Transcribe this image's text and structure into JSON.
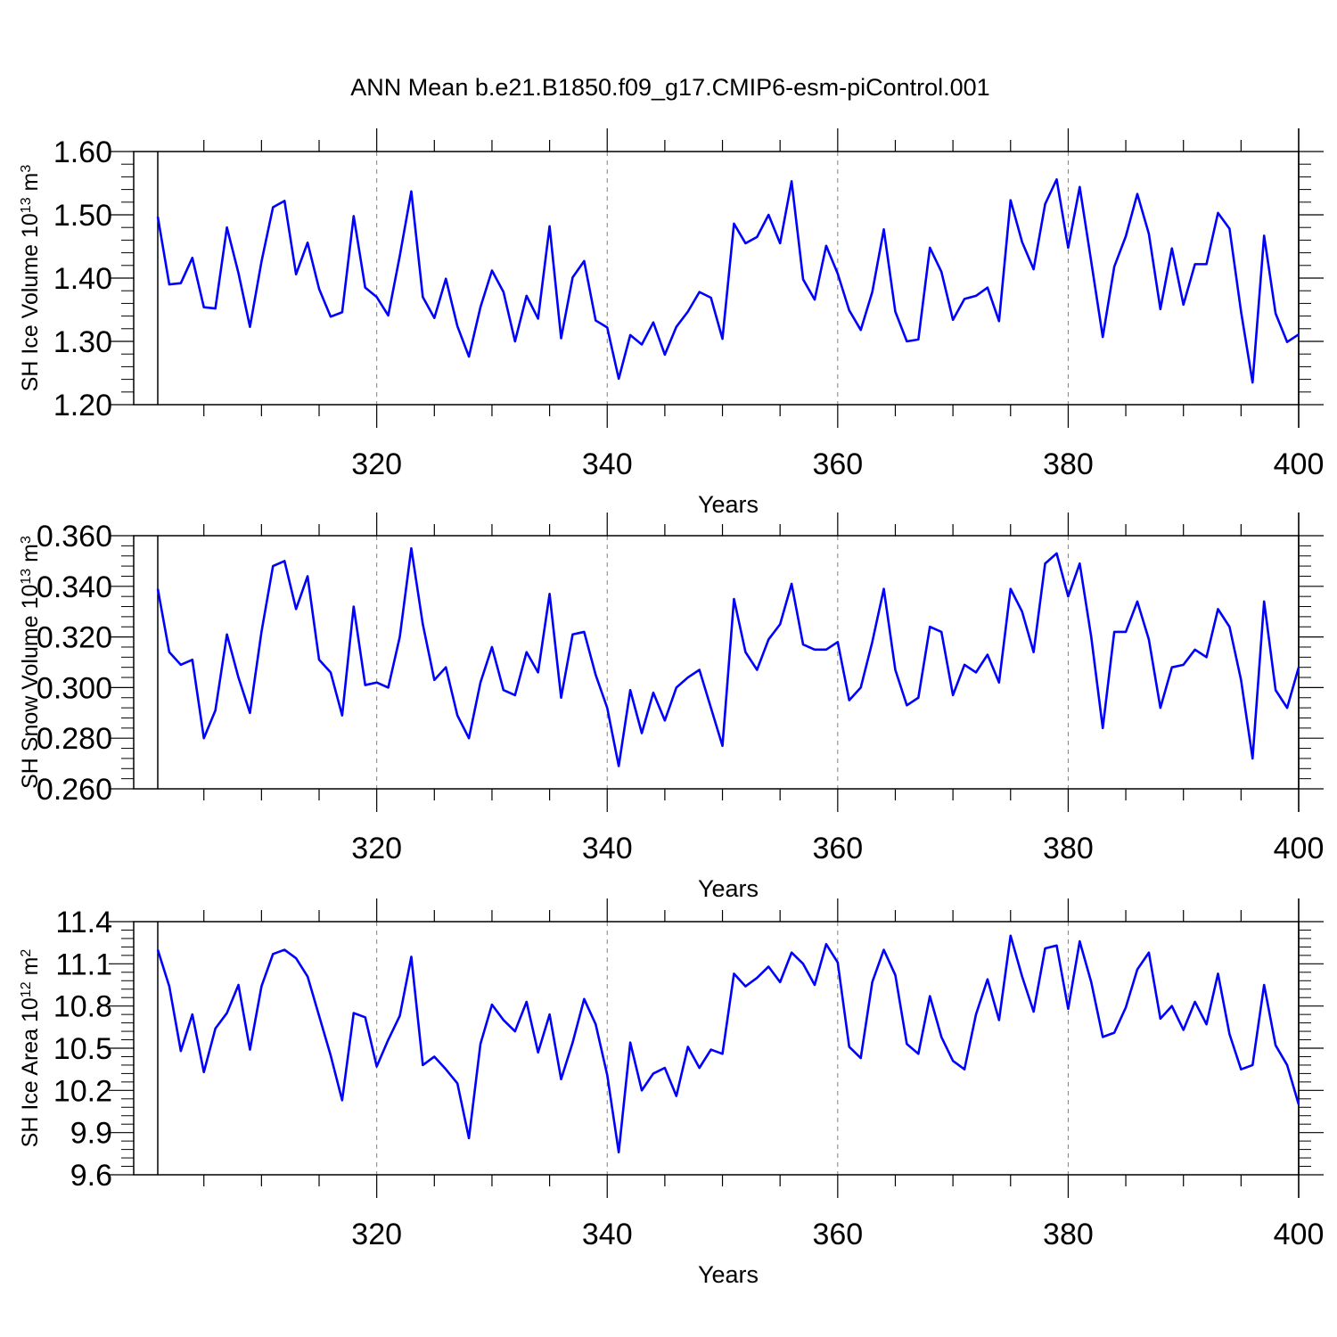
{
  "title": "ANN Mean b.e21.B1850.f09_g17.CMIP6-esm-piControl.001",
  "colors": {
    "line": "#0000ff",
    "axis": "#000000",
    "grid": "#808080"
  },
  "chart_data": [
    {
      "type": "line",
      "title": "ANN Mean b.e21.B1850.f09_g17.CMIP6-esm-piControl.001",
      "xlabel": "Years",
      "ylabel": {
        "text": "SH Ice Volume 10",
        "exp": "13",
        "unit": " m",
        "unit_exp": "3"
      },
      "xlim": [
        301,
        400
      ],
      "ylim": [
        1.2,
        1.6
      ],
      "x_ticks": [
        "320",
        "340",
        "360",
        "380",
        "400"
      ],
      "y_ticks": [
        "1.20",
        "1.30",
        "1.40",
        "1.50",
        "1.60"
      ],
      "grid": "dashed vertical lines at 320, 340, 360, 380",
      "series": [
        {
          "x_start": 301,
          "values": [
            1.497,
            1.39,
            1.392,
            1.432,
            1.354,
            1.352,
            1.48,
            1.408,
            1.323,
            1.426,
            1.512,
            1.522,
            1.406,
            1.456,
            1.383,
            1.339,
            1.346,
            1.498,
            1.385,
            1.37,
            1.341,
            1.435,
            1.537,
            1.37,
            1.337,
            1.399,
            1.324,
            1.276,
            1.354,
            1.412,
            1.378,
            1.3,
            1.372,
            1.336,
            1.482,
            1.305,
            1.401,
            1.427,
            1.333,
            1.322,
            1.241,
            1.31,
            1.295,
            1.33,
            1.279,
            1.323,
            1.347,
            1.378,
            1.369,
            1.304,
            1.486,
            1.455,
            1.465,
            1.5,
            1.455,
            1.553,
            1.398,
            1.366,
            1.451,
            1.407,
            1.349,
            1.318,
            1.378,
            1.477,
            1.347,
            1.3,
            1.303,
            1.448,
            1.41,
            1.334,
            1.367,
            1.372,
            1.385,
            1.332,
            1.523,
            1.457,
            1.414,
            1.517,
            1.556,
            1.448,
            1.544,
            1.426,
            1.307,
            1.418,
            1.466,
            1.533,
            1.47,
            1.351,
            1.447,
            1.358,
            1.422,
            1.422,
            1.503,
            1.478,
            1.347,
            1.235,
            1.467,
            1.344,
            1.299,
            1.311
          ]
        }
      ]
    },
    {
      "type": "line",
      "xlabel": "Years",
      "ylabel": {
        "text": "SH Snow Volume 10",
        "exp": "13",
        "unit": " m",
        "unit_exp": "3"
      },
      "xlim": [
        301,
        400
      ],
      "ylim": [
        0.26,
        0.36
      ],
      "x_ticks": [
        "320",
        "340",
        "360",
        "380",
        "400"
      ],
      "y_ticks": [
        "0.260",
        "0.280",
        "0.300",
        "0.320",
        "0.340",
        "0.360"
      ],
      "grid": "dashed vertical lines at 320, 340, 360, 380",
      "series": [
        {
          "x_start": 301,
          "values": [
            0.339,
            0.314,
            0.309,
            0.311,
            0.28,
            0.291,
            0.321,
            0.304,
            0.29,
            0.322,
            0.348,
            0.35,
            0.331,
            0.344,
            0.311,
            0.306,
            0.289,
            0.332,
            0.301,
            0.302,
            0.3,
            0.32,
            0.355,
            0.325,
            0.303,
            0.308,
            0.289,
            0.28,
            0.302,
            0.316,
            0.299,
            0.297,
            0.314,
            0.306,
            0.337,
            0.296,
            0.321,
            0.322,
            0.305,
            0.292,
            0.269,
            0.299,
            0.282,
            0.298,
            0.287,
            0.3,
            0.304,
            0.307,
            0.292,
            0.277,
            0.335,
            0.314,
            0.307,
            0.319,
            0.325,
            0.341,
            0.317,
            0.315,
            0.315,
            0.318,
            0.295,
            0.3,
            0.318,
            0.339,
            0.307,
            0.293,
            0.296,
            0.324,
            0.322,
            0.297,
            0.309,
            0.306,
            0.313,
            0.302,
            0.339,
            0.33,
            0.314,
            0.349,
            0.353,
            0.336,
            0.349,
            0.32,
            0.284,
            0.322,
            0.322,
            0.334,
            0.319,
            0.292,
            0.308,
            0.309,
            0.315,
            0.312,
            0.331,
            0.324,
            0.303,
            0.272,
            0.334,
            0.299,
            0.292,
            0.308
          ]
        }
      ]
    },
    {
      "type": "line",
      "xlabel": "Years",
      "ylabel": {
        "text": "SH Ice Area 10",
        "exp": "12",
        "unit": " m",
        "unit_exp": "2"
      },
      "xlim": [
        301,
        400
      ],
      "ylim": [
        9.6,
        11.4
      ],
      "x_ticks": [
        "320",
        "340",
        "360",
        "380",
        "400"
      ],
      "y_ticks": [
        "9.6",
        "9.9",
        "10.2",
        "10.5",
        "10.8",
        "11.1",
        "11.4"
      ],
      "grid": "dashed vertical lines at 320, 340, 360, 380",
      "series": [
        {
          "x_start": 301,
          "values": [
            11.2,
            10.94,
            10.48,
            10.74,
            10.33,
            10.64,
            10.75,
            10.95,
            10.49,
            10.94,
            11.17,
            11.2,
            11.14,
            11.01,
            10.73,
            10.45,
            10.13,
            10.75,
            10.72,
            10.37,
            10.56,
            10.73,
            11.15,
            10.38,
            10.44,
            10.35,
            10.25,
            9.86,
            10.53,
            10.81,
            10.7,
            10.62,
            10.83,
            10.47,
            10.74,
            10.28,
            10.54,
            10.85,
            10.67,
            10.31,
            9.76,
            10.54,
            10.2,
            10.32,
            10.36,
            10.16,
            10.51,
            10.36,
            10.49,
            10.46,
            11.03,
            10.94,
            11.0,
            11.08,
            10.97,
            11.18,
            11.1,
            10.95,
            11.24,
            11.11,
            10.51,
            10.43,
            10.97,
            11.2,
            11.02,
            10.53,
            10.46,
            10.87,
            10.58,
            10.41,
            10.35,
            10.74,
            10.99,
            10.7,
            11.3,
            11.01,
            10.76,
            11.21,
            11.23,
            10.78,
            11.26,
            10.97,
            10.58,
            10.61,
            10.79,
            11.06,
            11.18,
            10.71,
            10.8,
            10.63,
            10.83,
            10.67,
            11.03,
            10.6,
            10.35,
            10.38,
            10.95,
            10.52,
            10.38,
            10.1
          ]
        }
      ]
    }
  ]
}
